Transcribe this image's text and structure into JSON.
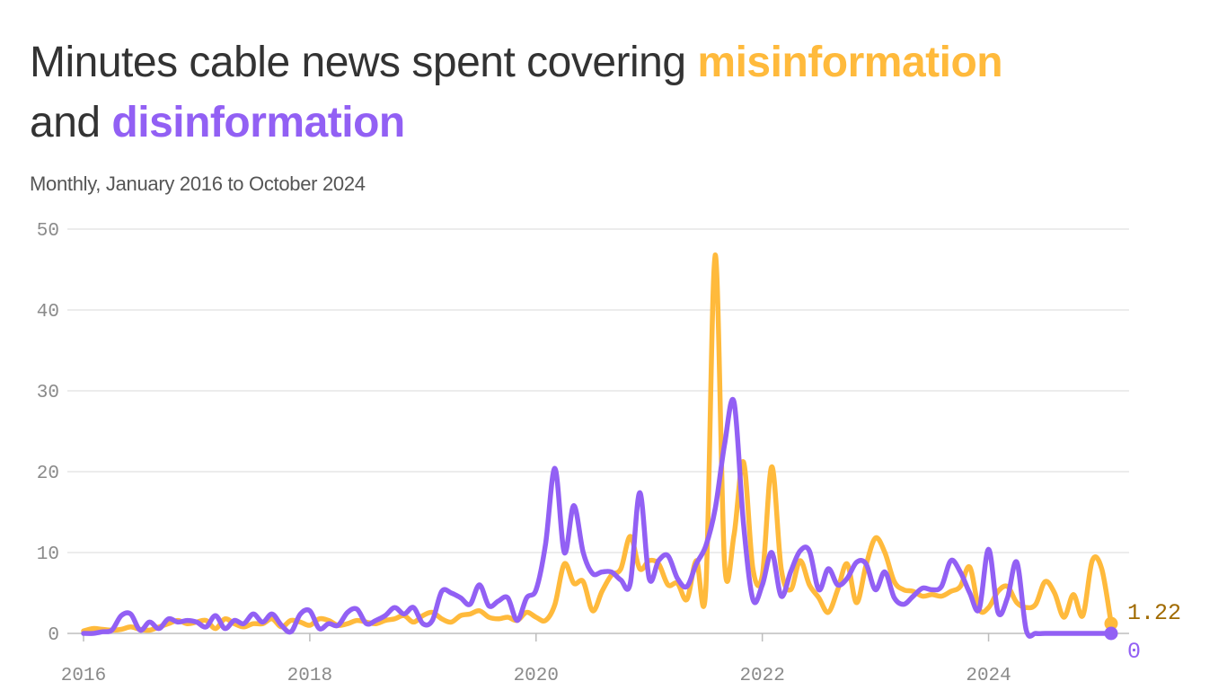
{
  "header": {
    "title_prefix": "Minutes cable news spent covering ",
    "title_mis": "misinformation",
    "title_and": "and ",
    "title_dis": "disinformation",
    "subtitle": "Monthly, January 2016 to October 2024"
  },
  "colors": {
    "misinformation": "#ffba3c",
    "disinformation": "#9260f4",
    "mis_label": "#a06a00",
    "grid": "#e0e0e0",
    "zero": "#bdbdbd"
  },
  "chart_data": {
    "type": "line",
    "title": "Minutes cable news spent covering misinformation and disinformation",
    "subtitle": "Monthly, January 2016 to October 2024",
    "xlabel": "",
    "ylabel": "",
    "x_start": "2016-01",
    "x_end": "2024-10",
    "ylim": [
      0,
      50
    ],
    "yticks": [
      0,
      10,
      20,
      30,
      40,
      50
    ],
    "xticks": [
      2016,
      2018,
      2020,
      2022,
      2024
    ],
    "grid": true,
    "legend": "in title",
    "series": [
      {
        "name": "misinformation",
        "end_label": "1.22",
        "values": [
          0.3,
          0.6,
          0.5,
          0.4,
          0.5,
          0.8,
          0.5,
          0.4,
          0.8,
          1.2,
          1.6,
          1.2,
          1.4,
          1.6,
          0.6,
          1.8,
          1.2,
          0.8,
          1.2,
          1.2,
          1.8,
          0.8,
          1.6,
          1.4,
          1.0,
          1.8,
          1.6,
          1.0,
          1.2,
          1.6,
          1.4,
          1.2,
          1.6,
          1.8,
          2.2,
          1.4,
          2.2,
          2.6,
          1.8,
          1.4,
          2.2,
          2.4,
          2.8,
          2.0,
          1.8,
          2.0,
          1.6,
          2.6,
          2.0,
          1.6,
          3.6,
          8.6,
          6.2,
          6.4,
          2.8,
          5.2,
          7.2,
          8.0,
          12.0,
          8.0,
          9.0,
          8.6,
          6.0,
          6.2,
          4.2,
          9.0,
          5.4,
          46.8,
          8.6,
          12.2,
          21.2,
          8.0,
          7.2,
          20.6,
          8.0,
          5.4,
          9.0,
          6.0,
          4.4,
          2.6,
          5.4,
          8.6,
          3.8,
          8.4,
          11.8,
          10.0,
          6.4,
          5.4,
          5.2,
          4.6,
          4.8,
          4.6,
          5.2,
          5.8,
          8.2,
          3.0,
          3.2,
          5.2,
          5.8,
          3.8,
          3.2,
          3.6,
          6.4,
          5.0,
          2.0,
          4.8,
          2.2,
          9.0,
          8.0,
          1.22
        ]
      },
      {
        "name": "disinformation",
        "end_label": "0",
        "values": [
          0.0,
          0.0,
          0.2,
          0.4,
          2.2,
          2.4,
          0.4,
          1.4,
          0.6,
          1.8,
          1.4,
          1.6,
          1.4,
          0.8,
          2.2,
          0.6,
          1.6,
          1.2,
          2.4,
          1.4,
          2.4,
          1.0,
          0.2,
          2.4,
          2.8,
          0.6,
          1.2,
          1.0,
          2.6,
          3.0,
          1.2,
          1.6,
          2.2,
          3.2,
          2.4,
          3.2,
          1.2,
          1.6,
          5.2,
          5.0,
          4.4,
          3.6,
          6.0,
          3.4,
          4.0,
          4.4,
          1.6,
          4.4,
          5.4,
          11.0,
          20.4,
          10.0,
          15.8,
          10.0,
          7.4,
          7.6,
          7.6,
          6.6,
          6.2,
          17.4,
          6.8,
          9.0,
          9.6,
          6.8,
          5.8,
          8.6,
          10.8,
          15.4,
          23.4,
          28.6,
          13.6,
          4.2,
          6.0,
          10.0,
          4.6,
          7.6,
          10.2,
          10.2,
          5.4,
          8.0,
          6.0,
          6.8,
          8.8,
          8.6,
          5.4,
          7.6,
          4.4,
          3.6,
          4.6,
          5.6,
          5.4,
          5.8,
          9.0,
          7.6,
          5.0,
          3.0,
          10.4,
          2.6,
          4.4,
          8.8,
          0.4,
          0.0,
          0.0,
          0.0,
          0.0,
          0.0,
          0.0,
          0.0,
          0.0,
          0.0
        ]
      }
    ]
  }
}
